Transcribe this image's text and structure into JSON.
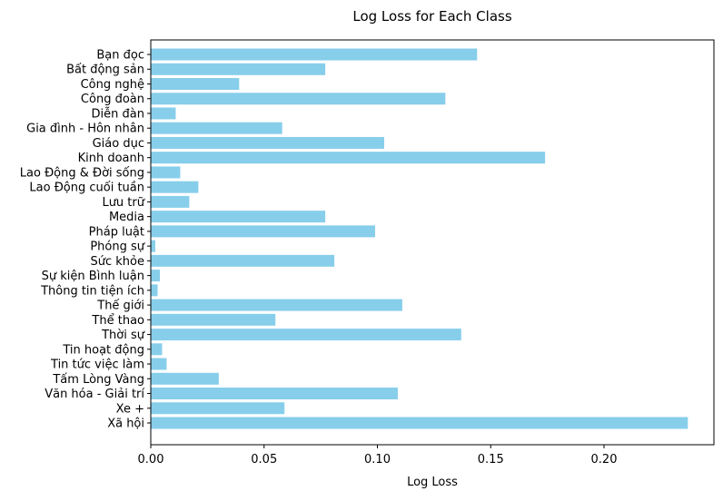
{
  "chart_data": {
    "type": "bar",
    "orientation": "horizontal",
    "title": "Log Loss for Each Class",
    "xlabel": "Log Loss",
    "ylabel": "",
    "xlim": [
      0,
      0.2485
    ],
    "xticks": [
      0.0,
      0.05,
      0.1,
      0.15,
      0.2
    ],
    "xtick_labels": [
      "0.00",
      "0.05",
      "0.10",
      "0.15",
      "0.20"
    ],
    "grid": false,
    "bar_color": "#87CEEB",
    "categories": [
      "Bạn đọc",
      "Bất động sản",
      "Công nghệ",
      "Công đoàn",
      "Diễn đàn",
      "Gia đình - Hôn nhân",
      "Giáo dục",
      "Kinh doanh",
      "Lao Động & Đời sống",
      "Lao Động cuối tuần",
      "Lưu trữ",
      "Media",
      "Pháp luật",
      "Phóng sự",
      "Sức khỏe",
      "Sự kiện Bình luận",
      "Thông tin tiện ích",
      "Thế giới",
      "Thể thao",
      "Thời sự",
      "Tin hoạt động",
      "Tin tức việc làm",
      "Tấm Lòng Vàng",
      "Văn hóa - Giải trí",
      "Xe +",
      "Xã hội"
    ],
    "values": [
      0.144,
      0.077,
      0.039,
      0.13,
      0.011,
      0.058,
      0.103,
      0.174,
      0.013,
      0.021,
      0.017,
      0.077,
      0.099,
      0.002,
      0.081,
      0.004,
      0.003,
      0.111,
      0.055,
      0.137,
      0.005,
      0.007,
      0.03,
      0.109,
      0.059,
      0.237
    ]
  }
}
